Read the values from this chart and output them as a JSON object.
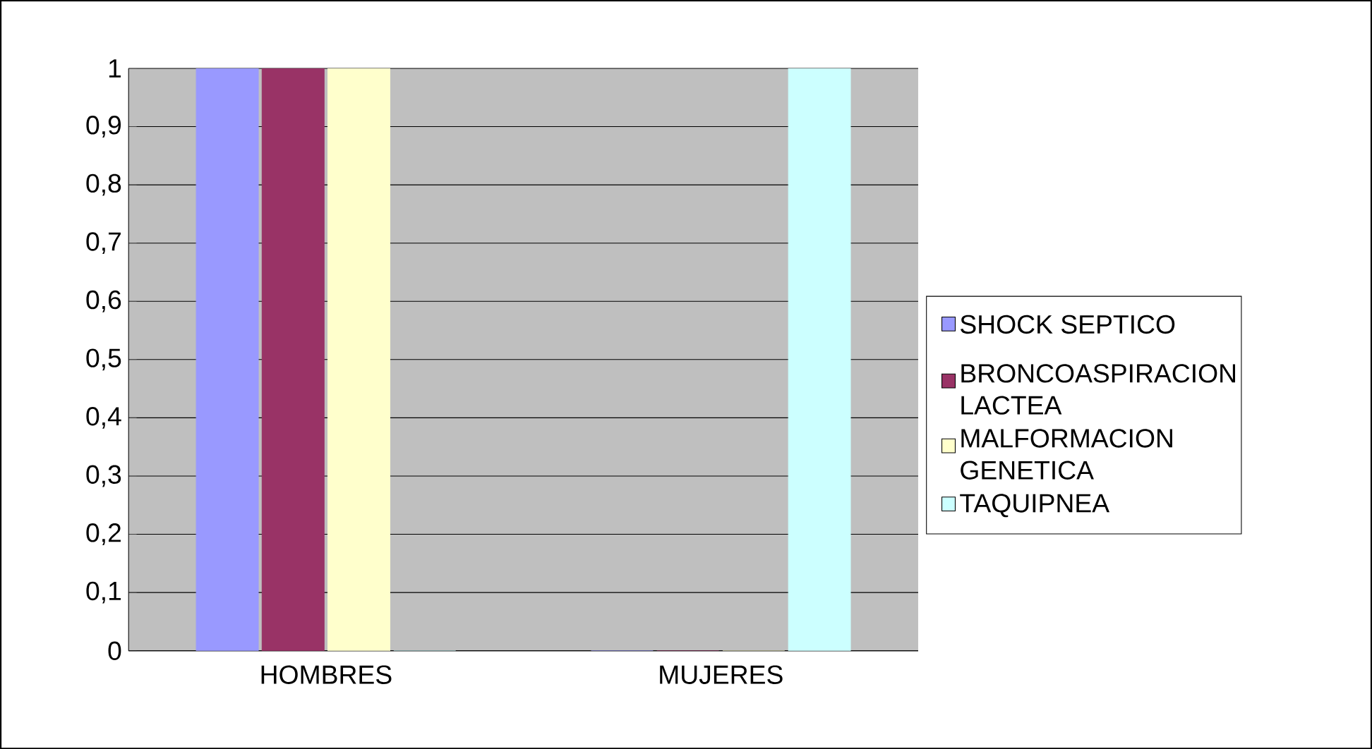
{
  "chart_data": {
    "type": "bar",
    "categories": [
      "HOMBRES",
      "MUJERES"
    ],
    "series": [
      {
        "name": "SHOCK SEPTICO",
        "color": "#9999ff",
        "values": [
          1,
          0
        ]
      },
      {
        "name": "BRONCOASPIRACION LACTEA",
        "color": "#993366",
        "values": [
          1,
          0
        ]
      },
      {
        "name": "MALFORMACION GENETICA",
        "color": "#ffffcc",
        "values": [
          1,
          0
        ]
      },
      {
        "name": "TAQUIPNEA",
        "color": "#ccffff",
        "values": [
          0,
          1
        ]
      }
    ],
    "ylim": [
      0,
      1
    ],
    "yticks": [
      {
        "value": 0,
        "label": "0"
      },
      {
        "value": 0.1,
        "label": "0,1"
      },
      {
        "value": 0.2,
        "label": "0,2"
      },
      {
        "value": 0.3,
        "label": "0,3"
      },
      {
        "value": 0.4,
        "label": "0,4"
      },
      {
        "value": 0.5,
        "label": "0,5"
      },
      {
        "value": 0.6,
        "label": "0,6"
      },
      {
        "value": 0.7,
        "label": "0,7"
      },
      {
        "value": 0.8,
        "label": "0,8"
      },
      {
        "value": 0.9,
        "label": "0,9"
      },
      {
        "value": 1,
        "label": "1"
      }
    ],
    "grid": "y",
    "legend": "right"
  }
}
